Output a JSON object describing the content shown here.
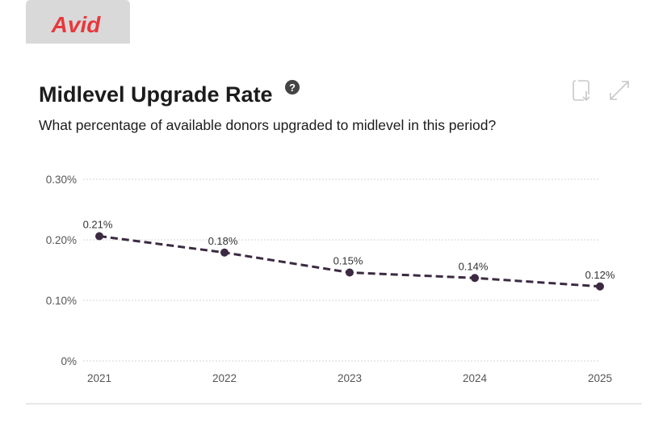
{
  "logo": "Avid",
  "help_icon": "?",
  "chart_data": {
    "type": "line",
    "title": "Midlevel Upgrade Rate",
    "subtitle": "What percentage of available donors upgraded to midlevel in this period?",
    "categories": [
      "2021",
      "2022",
      "2023",
      "2024",
      "2025"
    ],
    "values": [
      0.206,
      0.179,
      0.146,
      0.137,
      0.123
    ],
    "value_labels": [
      "0.21%",
      "0.18%",
      "0.15%",
      "0.14%",
      "0.12%"
    ],
    "color": "#3b2a42",
    "ylim": [
      0,
      0.3
    ],
    "yticks": [
      {
        "value": 0,
        "label": "0%"
      },
      {
        "value": 0.1,
        "label": "0.10%"
      },
      {
        "value": 0.2,
        "label": "0.20%"
      },
      {
        "value": 0.3,
        "label": "0.30%"
      }
    ],
    "grid": true
  }
}
